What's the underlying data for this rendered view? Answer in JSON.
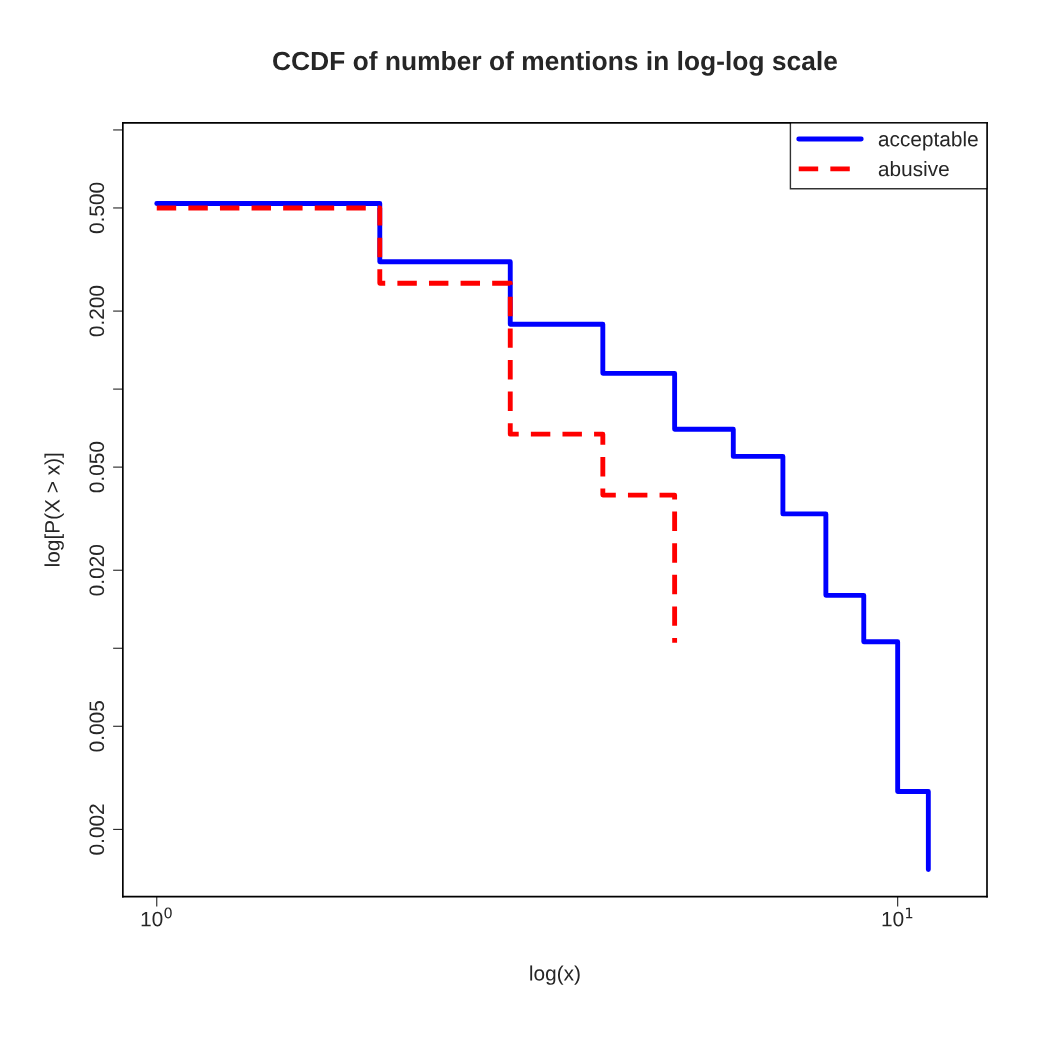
{
  "chart_data": {
    "type": "step",
    "title": "CCDF of number of mentions in log-log scale",
    "xlabel": "log(x)",
    "ylabel": "log[P(X > x)]",
    "log": "xy",
    "xlim": [
      0.9,
      13.2
    ],
    "ylim": [
      0.0011,
      1.065
    ],
    "xticks": [
      {
        "value": 1,
        "label": "10$^{0}$"
      },
      {
        "value": 10,
        "label": "10$^{1}$"
      }
    ],
    "yticks": [
      {
        "value": 1,
        "label": null
      },
      {
        "value": 0.5,
        "label": "0.500"
      },
      {
        "value": 0.2,
        "label": "0.200"
      },
      {
        "value": 0.1,
        "label": null
      },
      {
        "value": 0.05,
        "label": "0.050"
      },
      {
        "value": 0.02,
        "label": "0.020"
      },
      {
        "value": 0.01,
        "label": null
      },
      0.005,
      0.002
    ],
    "grid": false,
    "legend": "top right",
    "series": [
      {
        "name": "acceptable",
        "color": "#0000ff",
        "line_style": "solid",
        "x": [
          1,
          2,
          3,
          4,
          5,
          6,
          7,
          8,
          9,
          10,
          11
        ],
        "values": [
          0.52,
          0.31,
          0.178,
          0.115,
          0.07,
          0.055,
          0.033,
          0.016,
          0.0106,
          0.0028,
          0.0014
        ]
      },
      {
        "name": "abusive",
        "color": "#ff0000",
        "line_style": "dashed",
        "x": [
          1,
          2,
          3,
          4,
          5
        ],
        "values": [
          0.5,
          0.256,
          0.067,
          0.039,
          0.0105
        ]
      }
    ]
  }
}
